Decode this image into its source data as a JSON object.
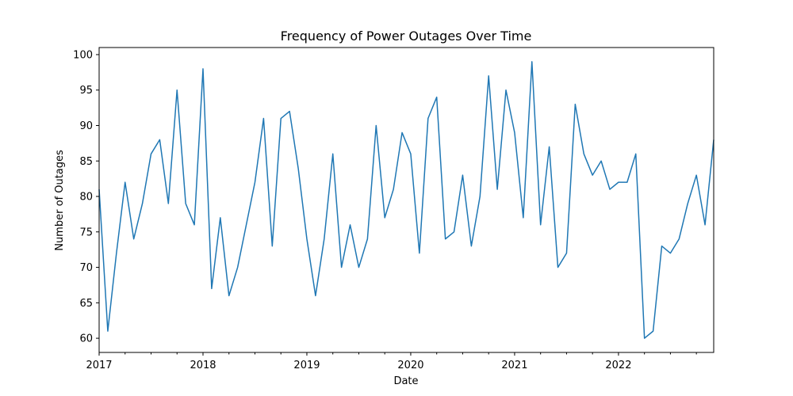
{
  "chart_data": {
    "type": "line",
    "title": "Frequency of Power Outages Over Time",
    "xlabel": "Date",
    "ylabel": "Number of Outages",
    "xlim": [
      "2017-01",
      "2022-12"
    ],
    "ylim": [
      58,
      101
    ],
    "x_major_ticks": [
      "2017",
      "2018",
      "2019",
      "2020",
      "2021",
      "2022"
    ],
    "y_ticks": [
      60,
      65,
      70,
      75,
      80,
      85,
      90,
      95,
      100
    ],
    "grid": false,
    "legend": "none",
    "line_color": "#1f77b4",
    "series": [
      {
        "x": [
          "2017-01",
          "2017-02",
          "2017-03",
          "2017-04",
          "2017-05",
          "2017-06",
          "2017-07",
          "2017-08",
          "2017-09",
          "2017-10",
          "2017-11",
          "2017-12",
          "2018-01",
          "2018-02",
          "2018-03",
          "2018-04",
          "2018-05",
          "2018-06",
          "2018-07",
          "2018-08",
          "2018-09",
          "2018-10",
          "2018-11",
          "2018-12",
          "2019-01",
          "2019-02",
          "2019-03",
          "2019-04",
          "2019-05",
          "2019-06",
          "2019-07",
          "2019-08",
          "2019-09",
          "2019-10",
          "2019-11",
          "2019-12",
          "2020-01",
          "2020-02",
          "2020-03",
          "2020-04",
          "2020-05",
          "2020-06",
          "2020-07",
          "2020-08",
          "2020-09",
          "2020-10",
          "2020-11",
          "2020-12",
          "2021-01",
          "2021-02",
          "2021-03",
          "2021-04",
          "2021-05",
          "2021-06",
          "2021-07",
          "2021-08",
          "2021-09",
          "2021-10",
          "2021-11",
          "2021-12",
          "2022-01",
          "2022-02",
          "2022-03",
          "2022-04",
          "2022-05",
          "2022-06",
          "2022-07",
          "2022-08",
          "2022-09",
          "2022-10",
          "2022-11",
          "2022-12"
        ],
        "values": [
          81,
          61,
          72,
          82,
          74,
          79,
          86,
          88,
          79,
          95,
          79,
          76,
          98,
          67,
          77,
          66,
          70,
          76,
          82,
          91,
          73,
          91,
          92,
          84,
          74,
          66,
          74,
          86,
          70,
          76,
          70,
          74,
          90,
          77,
          81,
          89,
          86,
          72,
          91,
          94,
          74,
          75,
          83,
          73,
          80,
          97,
          81,
          95,
          89,
          77,
          99,
          76,
          87,
          70,
          72,
          93,
          86,
          83,
          85,
          81,
          82,
          82,
          86,
          60,
          61,
          73,
          72,
          74,
          79,
          83,
          76,
          88
        ]
      }
    ]
  }
}
